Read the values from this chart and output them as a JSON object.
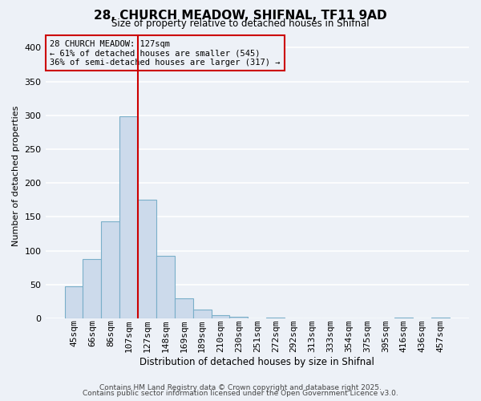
{
  "title": "28, CHURCH MEADOW, SHIFNAL, TF11 9AD",
  "subtitle": "Size of property relative to detached houses in Shifnal",
  "xlabel": "Distribution of detached houses by size in Shifnal",
  "ylabel": "Number of detached properties",
  "bar_labels": [
    "45sqm",
    "66sqm",
    "86sqm",
    "107sqm",
    "127sqm",
    "148sqm",
    "169sqm",
    "189sqm",
    "210sqm",
    "230sqm",
    "251sqm",
    "272sqm",
    "292sqm",
    "313sqm",
    "333sqm",
    "354sqm",
    "375sqm",
    "395sqm",
    "416sqm",
    "436sqm",
    "457sqm"
  ],
  "bar_values": [
    47,
    88,
    143,
    298,
    175,
    92,
    30,
    13,
    5,
    2,
    0,
    1,
    0,
    0,
    0,
    0,
    0,
    0,
    1,
    0,
    1
  ],
  "bar_color": "#ccdaeb",
  "bar_edge_color": "#7aafc9",
  "ylim": [
    0,
    420
  ],
  "yticks": [
    0,
    50,
    100,
    150,
    200,
    250,
    300,
    350,
    400
  ],
  "vline_color": "#cc0000",
  "annotation_text": "28 CHURCH MEADOW: 127sqm\n← 61% of detached houses are smaller (545)\n36% of semi-detached houses are larger (317) →",
  "annotation_box_edgecolor": "#cc0000",
  "background_color": "#edf1f7",
  "grid_color": "#ffffff",
  "footer_line1": "Contains HM Land Registry data © Crown copyright and database right 2025.",
  "footer_line2": "Contains public sector information licensed under the Open Government Licence v3.0."
}
